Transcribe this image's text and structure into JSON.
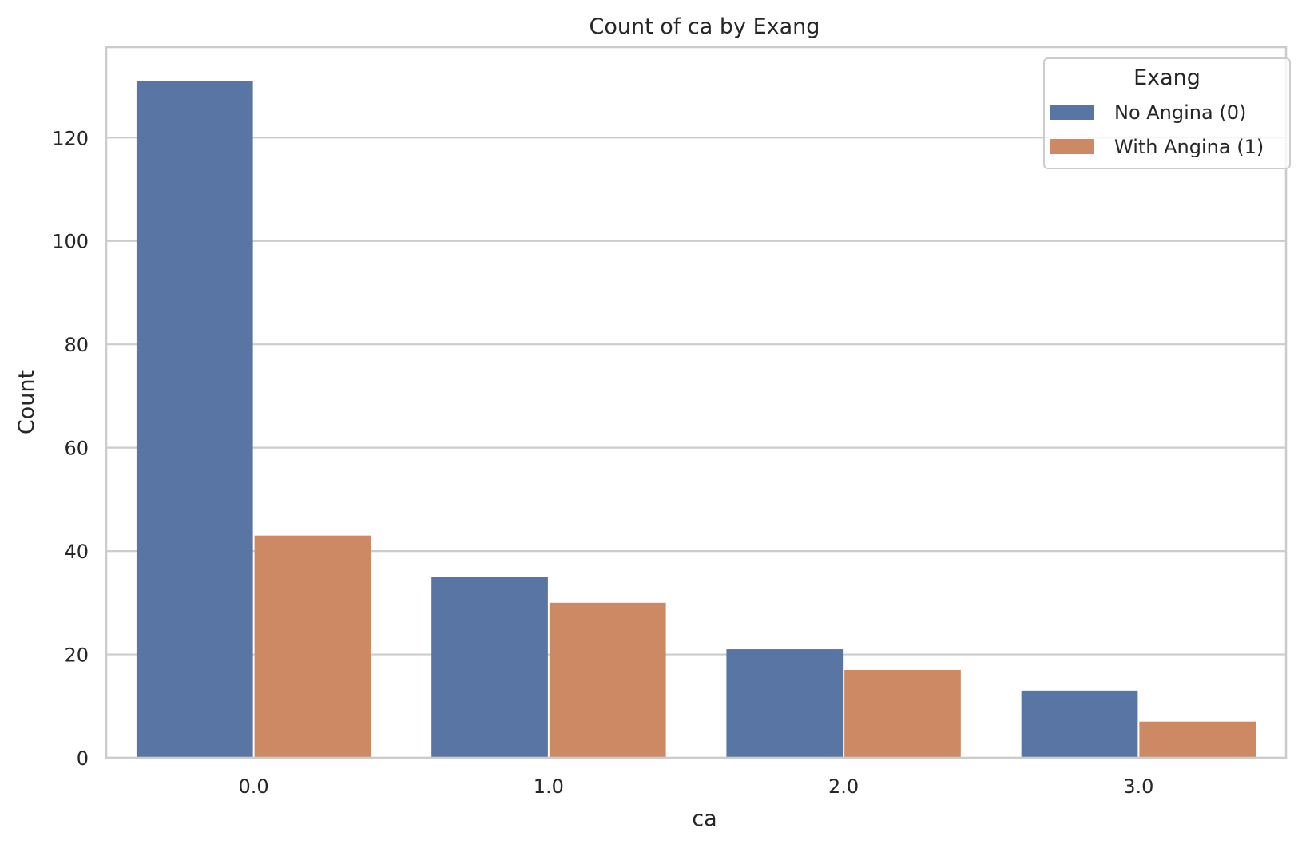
{
  "chart_data": {
    "type": "bar",
    "title": "Count of ca by Exang",
    "xlabel": "ca",
    "ylabel": "Count",
    "categories": [
      "0.0",
      "1.0",
      "2.0",
      "3.0"
    ],
    "series": [
      {
        "name": "No Angina (0)",
        "values": [
          131,
          35,
          21,
          13
        ],
        "color": "#5975a4"
      },
      {
        "name": "With Angina (1)",
        "values": [
          43,
          30,
          17,
          7
        ],
        "color": "#cc8963"
      }
    ],
    "ylim": [
      0,
      137.5
    ],
    "yticks": [
      0,
      20,
      40,
      60,
      80,
      100,
      120
    ],
    "grid": "horizontal",
    "legend": {
      "title": "Exang",
      "placement": "top-right"
    }
  }
}
